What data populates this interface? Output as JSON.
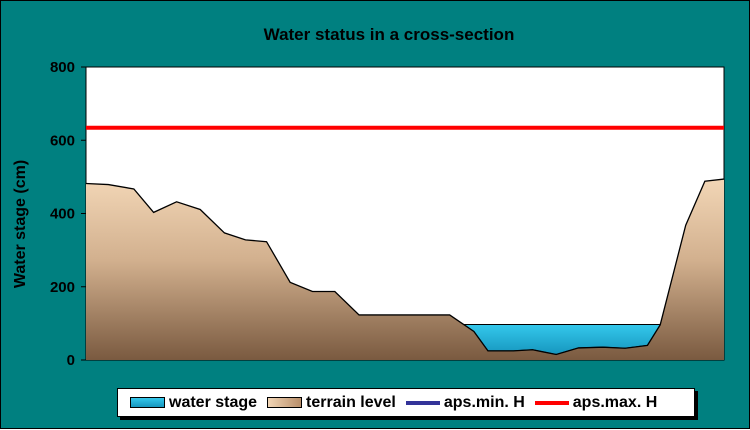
{
  "chart_data": {
    "type": "area",
    "title": "Water status in a cross-section",
    "xlabel": "",
    "ylabel": "Water stage (cm)",
    "ylim": [
      0,
      800
    ],
    "yticks": [
      "0",
      "200",
      "400",
      "600",
      "800"
    ],
    "grid": false,
    "legend_position": "bottom",
    "terrain_profile": [
      [
        0,
        482
      ],
      [
        0.035,
        479
      ],
      [
        0.075,
        467
      ],
      [
        0.106,
        403
      ],
      [
        0.142,
        432
      ],
      [
        0.179,
        411
      ],
      [
        0.217,
        347
      ],
      [
        0.25,
        328
      ],
      [
        0.283,
        323
      ],
      [
        0.32,
        212
      ],
      [
        0.355,
        187
      ],
      [
        0.39,
        187
      ],
      [
        0.428,
        123
      ],
      [
        0.463,
        123
      ],
      [
        0.5,
        123
      ],
      [
        0.538,
        123
      ],
      [
        0.57,
        123
      ],
      [
        0.608,
        78
      ],
      [
        0.63,
        25
      ],
      [
        0.67,
        25
      ],
      [
        0.7,
        28
      ],
      [
        0.717,
        22
      ],
      [
        0.737,
        15
      ],
      [
        0.772,
        33
      ],
      [
        0.81,
        35
      ],
      [
        0.845,
        32
      ],
      [
        0.88,
        40
      ],
      [
        0.9,
        96
      ],
      [
        0.94,
        368
      ],
      [
        0.97,
        488
      ],
      [
        1.0,
        494
      ]
    ],
    "water_stage": 97,
    "aps_min_H": null,
    "aps_max_H": 634,
    "series": [
      {
        "name": "water stage",
        "color": "#22B8DC",
        "kind": "area"
      },
      {
        "name": "terrain level",
        "color": "#D8B898",
        "kind": "area"
      },
      {
        "name": "aps.min. H",
        "color": "#333399",
        "kind": "line"
      },
      {
        "name": "aps.max. H",
        "color": "#FF0000",
        "kind": "line"
      }
    ]
  }
}
